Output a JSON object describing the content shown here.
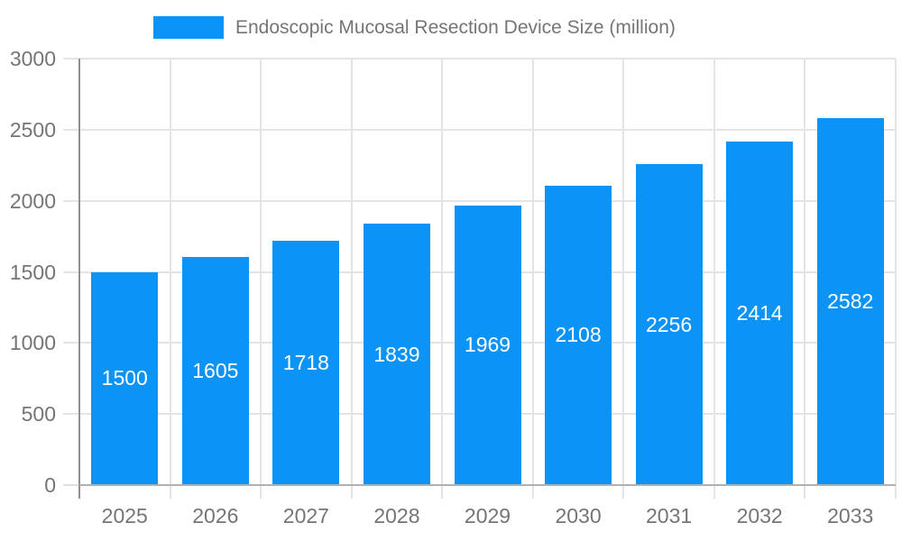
{
  "chart_data": {
    "type": "bar",
    "title": "Endoscopic Mucosal Resection Device Size (million)",
    "categories": [
      "2025",
      "2026",
      "2027",
      "2028",
      "2029",
      "2030",
      "2031",
      "2032",
      "2033"
    ],
    "values": [
      1500,
      1605,
      1718,
      1839,
      1969,
      2108,
      2256,
      2414,
      2582
    ],
    "bar_labels": [
      "1500",
      "1605",
      "1718",
      "1839",
      "1969",
      "2108",
      "2256",
      "2414",
      "2582"
    ],
    "xlabel": "",
    "ylabel": "",
    "ylim": [
      0,
      3000
    ],
    "yticks": [
      0,
      500,
      1000,
      1500,
      2000,
      2500,
      3000
    ],
    "grid": true,
    "legend_position": "top",
    "colors": {
      "bar": "#0b93f6",
      "bar_label": "#ffffff",
      "axis_text": "#757575",
      "title_text": "#757575",
      "gridline": "#e4e4e4",
      "tick": "#e0e0e0",
      "x_axis_line": "#b0b0b0",
      "y_axis_line": "#8f8f8f"
    }
  }
}
